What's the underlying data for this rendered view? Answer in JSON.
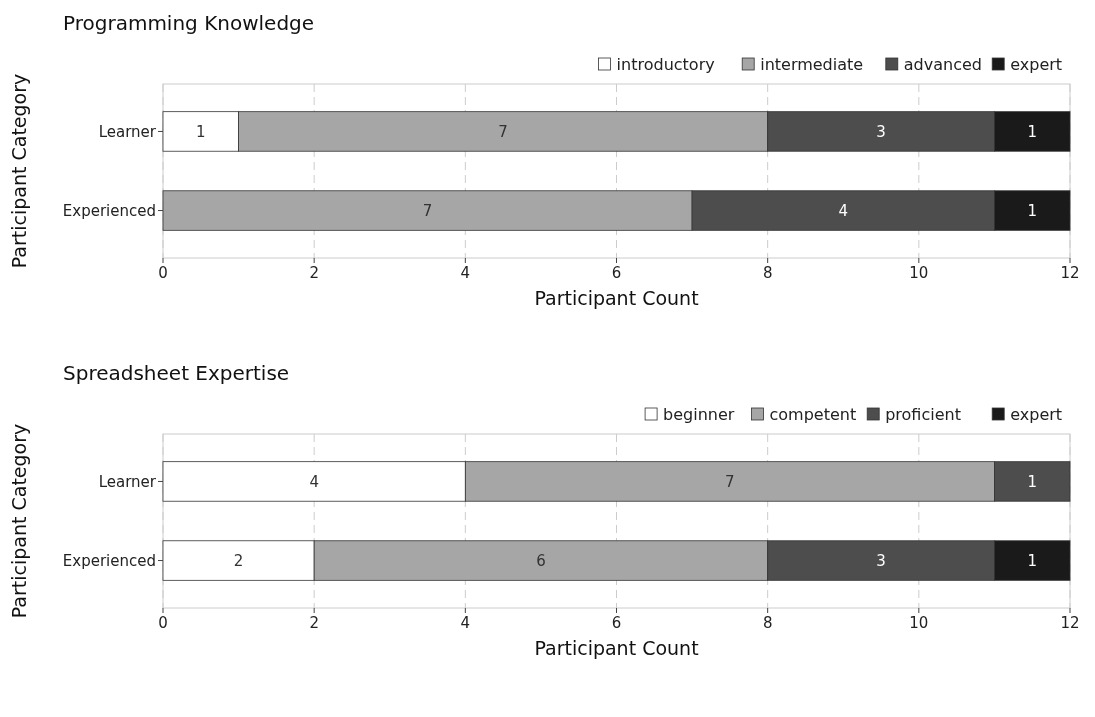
{
  "chart_data": [
    {
      "type": "bar",
      "title": "Programming Knowledge",
      "xlabel": "Participant Count",
      "ylabel": "Participant Category",
      "orientation": "horizontal",
      "stacked": true,
      "categories": [
        "Learner",
        "Experienced"
      ],
      "xlim": [
        0,
        12
      ],
      "xticks": [
        0,
        2,
        4,
        6,
        8,
        10,
        12
      ],
      "grid": "x",
      "legend": "top right",
      "series": [
        {
          "name": "introductory",
          "color": "#ffffff",
          "values": [
            1,
            0
          ],
          "value_labels": [
            "1",
            null
          ]
        },
        {
          "name": "intermediate",
          "color": "#a6a6a6",
          "values": [
            7,
            7
          ],
          "value_labels": [
            "7",
            "7"
          ]
        },
        {
          "name": "advanced",
          "color": "#4d4d4d",
          "values": [
            3,
            4
          ],
          "value_labels": [
            "3",
            "4"
          ]
        },
        {
          "name": "expert",
          "color": "#1a1a1a",
          "values": [
            1,
            1
          ],
          "value_labels": [
            "1",
            "1"
          ]
        }
      ]
    },
    {
      "type": "bar",
      "title": "Spreadsheet Expertise",
      "xlabel": "Participant Count",
      "ylabel": "Participant Category",
      "orientation": "horizontal",
      "stacked": true,
      "categories": [
        "Learner",
        "Experienced"
      ],
      "xlim": [
        0,
        12
      ],
      "xticks": [
        0,
        2,
        4,
        6,
        8,
        10,
        12
      ],
      "grid": "x",
      "legend": "top right",
      "series": [
        {
          "name": "beginner",
          "color": "#ffffff",
          "values": [
            4,
            2
          ],
          "value_labels": [
            "4",
            "2"
          ]
        },
        {
          "name": "competent",
          "color": "#a6a6a6",
          "values": [
            7,
            6
          ],
          "value_labels": [
            "7",
            "6"
          ]
        },
        {
          "name": "proficient",
          "color": "#4d4d4d",
          "values": [
            1,
            3
          ],
          "value_labels": [
            "1",
            "3"
          ]
        },
        {
          "name": "expert",
          "color": "#1a1a1a",
          "values": [
            0,
            1
          ],
          "value_labels": [
            null,
            "1"
          ]
        }
      ]
    }
  ]
}
